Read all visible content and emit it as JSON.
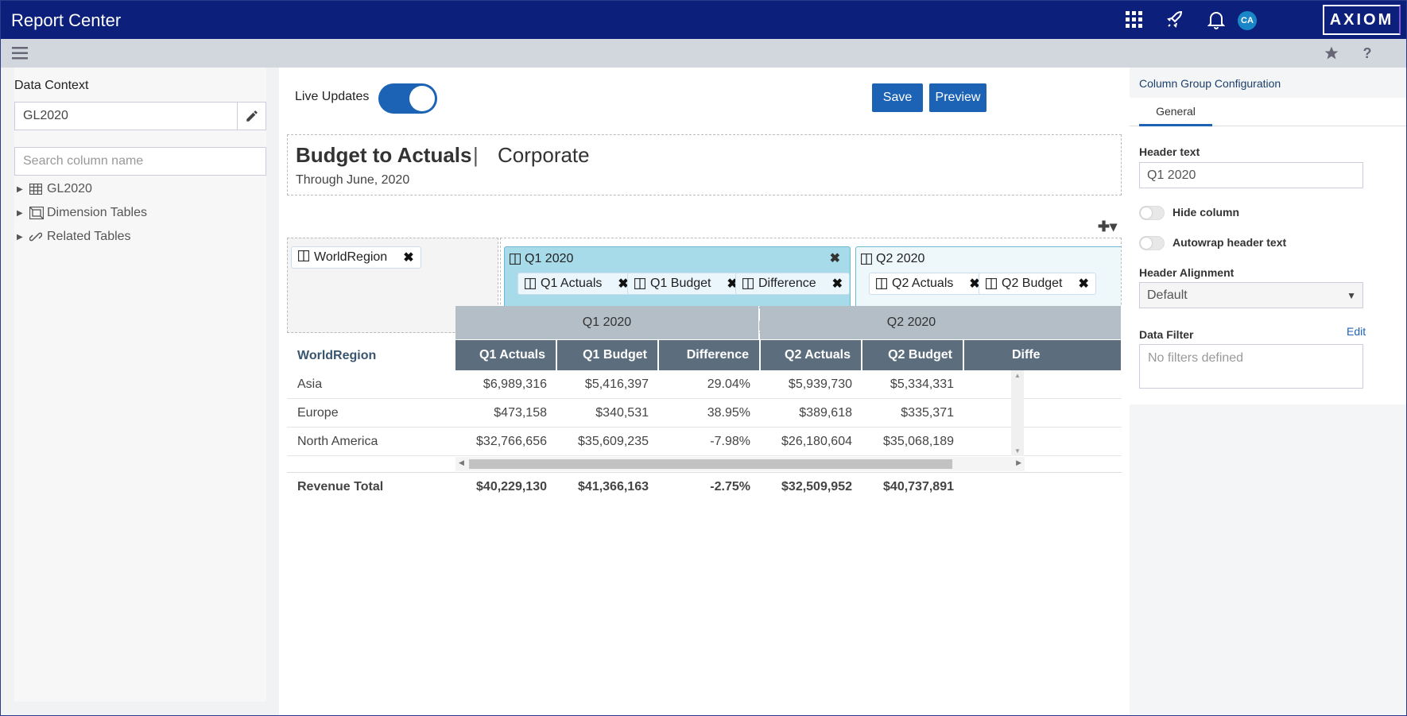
{
  "app": {
    "title": "Report Center",
    "logo": "AXIOM",
    "avatar": "CA"
  },
  "icons": {
    "apps": "grid-icon",
    "rocket": "rocket-icon",
    "bell": "bell-icon",
    "menu": "hamburger-icon",
    "star": "star-icon",
    "help": "help-icon"
  },
  "left": {
    "data_context_label": "Data Context",
    "data_context_value": "GL2020",
    "search_placeholder": "Search column name",
    "tree": [
      {
        "label": "GL2020",
        "icon": "table-icon"
      },
      {
        "label": "Dimension Tables",
        "icon": "dimension-icon"
      },
      {
        "label": "Related Tables",
        "icon": "link-icon"
      }
    ]
  },
  "center": {
    "live_updates_label": "Live Updates",
    "live_updates_on": true,
    "save_label": "Save",
    "preview_label": "Preview",
    "report_title": "Budget to Actuals",
    "report_sep": "|",
    "report_subtitle": "Corporate",
    "report_date": "Through June, 2020",
    "row_chip": "WorldRegion",
    "groups": [
      {
        "title": "Q1 2020",
        "cols": [
          "Q1 Actuals",
          "Q1 Budget",
          "Difference"
        ]
      },
      {
        "title": "Q2 2020",
        "cols": [
          "Q2 Actuals",
          "Q2 Budget"
        ]
      }
    ],
    "grid": {
      "group_headers": [
        "Q1 2020",
        "Q2 2020"
      ],
      "row_header": "WorldRegion",
      "columns": [
        "Q1 Actuals",
        "Q1 Budget",
        "Difference",
        "Q2 Actuals",
        "Q2 Budget",
        "Diffe"
      ],
      "rows": [
        {
          "name": "Asia",
          "values": [
            "$6,989,316",
            "$5,416,397",
            "29.04%",
            "$5,939,730",
            "$5,334,331"
          ]
        },
        {
          "name": "Europe",
          "values": [
            "$473,158",
            "$340,531",
            "38.95%",
            "$389,618",
            "$335,371"
          ]
        },
        {
          "name": "North America",
          "values": [
            "$32,766,656",
            "$35,609,235",
            "-7.98%",
            "$26,180,604",
            "$35,068,189"
          ]
        }
      ],
      "total": {
        "name": "Revenue Total",
        "values": [
          "$40,229,130",
          "$41,366,163",
          "-2.75%",
          "$32,509,952",
          "$40,737,891"
        ]
      }
    }
  },
  "right": {
    "panel_title": "Column Group Configuration",
    "tab": "General",
    "header_text_label": "Header text",
    "header_text_value": "Q1 2020",
    "hide_column_label": "Hide column",
    "autowrap_label": "Autowrap header text",
    "alignment_label": "Header Alignment",
    "alignment_value": "Default",
    "data_filter_label": "Data Filter",
    "edit_label": "Edit",
    "filter_placeholder": "No filters defined"
  }
}
